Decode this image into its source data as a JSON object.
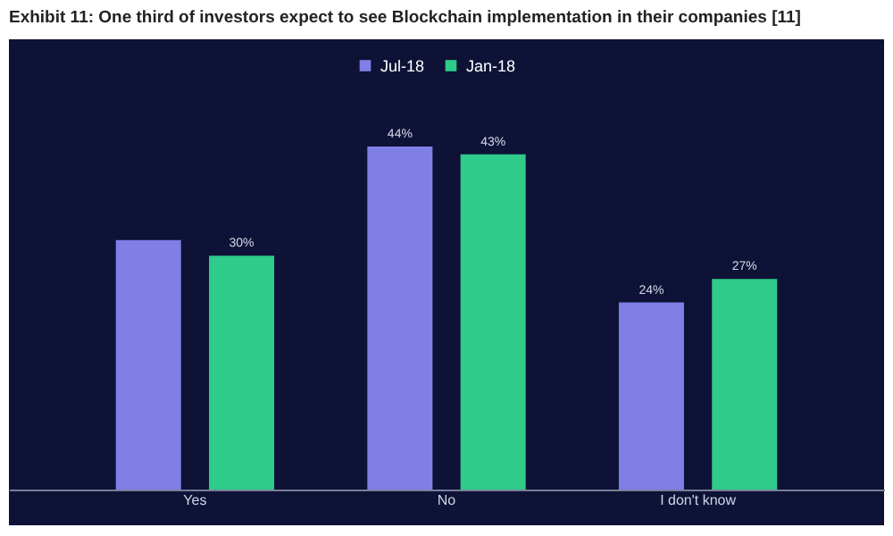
{
  "chart_data": {
    "type": "bar",
    "title": "Exhibit 11: One third of investors expect to see Blockchain implementation in their companies [11]",
    "categories": [
      "Yes",
      "No",
      "I don't know"
    ],
    "series": [
      {
        "name": "Jul-18",
        "color": "#7f7fe6",
        "values": [
          32,
          44,
          24
        ],
        "value_labels": [
          null,
          "44%",
          "24%"
        ]
      },
      {
        "name": "Jan-18",
        "color": "#2fcb8b",
        "values": [
          30,
          43,
          27
        ],
        "value_labels": [
          "30%",
          "43%",
          "27%"
        ]
      }
    ],
    "legend": "top"
  }
}
